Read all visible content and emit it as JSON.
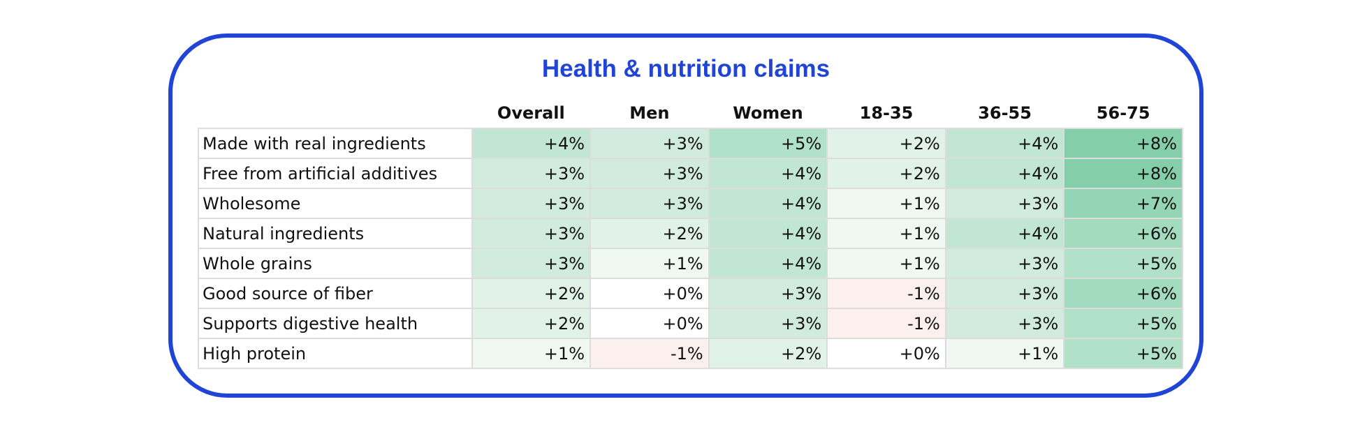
{
  "chart_data": {
    "type": "table",
    "title": "Health & nutrition claims",
    "columns": [
      "Overall",
      "Men",
      "Women",
      "18-35",
      "36-55",
      "56-75"
    ],
    "rows": [
      {
        "label": "Made with real ingredients",
        "values": [
          "+4%",
          "+3%",
          "+5%",
          "+2%",
          "+4%",
          "+8%"
        ],
        "numbers": [
          4,
          3,
          5,
          2,
          4,
          8
        ]
      },
      {
        "label": "Free from artificial additives",
        "values": [
          "+3%",
          "+3%",
          "+4%",
          "+2%",
          "+4%",
          "+8%"
        ],
        "numbers": [
          3,
          3,
          4,
          2,
          4,
          8
        ]
      },
      {
        "label": "Wholesome",
        "values": [
          "+3%",
          "+3%",
          "+4%",
          "+1%",
          "+3%",
          "+7%"
        ],
        "numbers": [
          3,
          3,
          4,
          1,
          3,
          7
        ]
      },
      {
        "label": "Natural ingredients",
        "values": [
          "+3%",
          "+2%",
          "+4%",
          "+1%",
          "+4%",
          "+6%"
        ],
        "numbers": [
          3,
          2,
          4,
          1,
          4,
          6
        ]
      },
      {
        "label": "Whole grains",
        "values": [
          "+3%",
          "+1%",
          "+4%",
          "+1%",
          "+3%",
          "+5%"
        ],
        "numbers": [
          3,
          1,
          4,
          1,
          3,
          5
        ]
      },
      {
        "label": "Good source of fiber",
        "values": [
          "+2%",
          "+0%",
          "+3%",
          "-1%",
          "+3%",
          "+6%"
        ],
        "numbers": [
          2,
          0,
          3,
          -1,
          3,
          6
        ]
      },
      {
        "label": "Supports digestive health",
        "values": [
          "+2%",
          "+0%",
          "+3%",
          "-1%",
          "+3%",
          "+5%"
        ],
        "numbers": [
          2,
          0,
          3,
          -1,
          3,
          5
        ]
      },
      {
        "label": "High protein",
        "values": [
          "+1%",
          "-1%",
          "+2%",
          "+0%",
          "+1%",
          "+5%"
        ],
        "numbers": [
          1,
          -1,
          2,
          0,
          1,
          5
        ]
      }
    ],
    "colors": {
      "title": "#1f44d6",
      "border": "#1f44d6",
      "positive_max": "#84cfaa",
      "positive_min": "#f0f8f3",
      "negative": "#fcf0ee",
      "zero": "#ffffff",
      "grid_line": "#dcdcdc"
    },
    "color_scale_max": 8
  }
}
